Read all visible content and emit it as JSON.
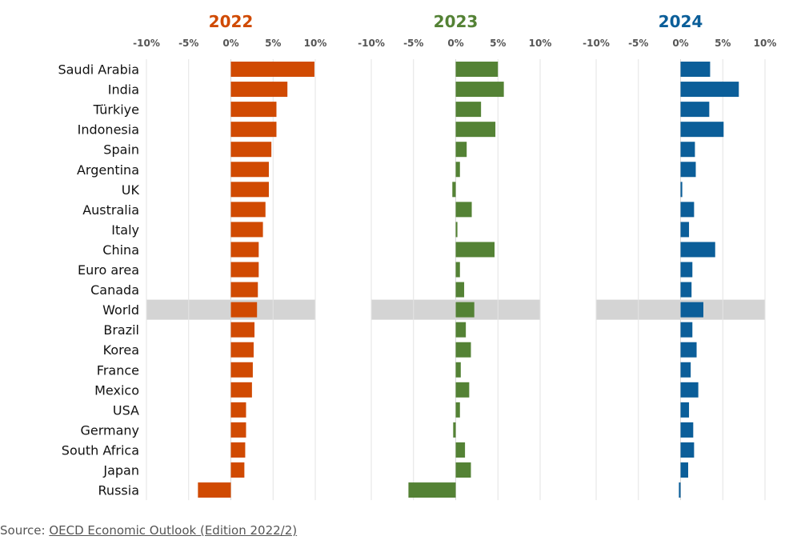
{
  "chart_data": {
    "type": "bar",
    "orientation": "horizontal",
    "categories": [
      "Saudi Arabia",
      "India",
      "Türkiye",
      "Indonesia",
      "Spain",
      "Argentina",
      "UK",
      "Australia",
      "Italy",
      "China",
      "Euro area",
      "Canada",
      "World",
      "Brazil",
      "Korea",
      "France",
      "Mexico",
      "USA",
      "Germany",
      "South Africa",
      "Japan",
      "Russia"
    ],
    "highlight_category": "World",
    "xlim": [
      -10,
      10
    ],
    "ticks": [
      -10,
      -5,
      0,
      5,
      10
    ],
    "tick_labels": [
      "-10%",
      "-5%",
      "0%",
      "5%",
      "10%"
    ],
    "series": [
      {
        "name": "2022",
        "color": "#D04A02",
        "values": [
          9.9,
          6.7,
          5.4,
          5.4,
          4.8,
          4.5,
          4.5,
          4.1,
          3.8,
          3.3,
          3.3,
          3.2,
          3.1,
          2.8,
          2.7,
          2.6,
          2.5,
          1.8,
          1.8,
          1.7,
          1.6,
          -3.9
        ]
      },
      {
        "name": "2023",
        "color": "#548235",
        "values": [
          5.0,
          5.7,
          3.0,
          4.7,
          1.3,
          0.5,
          -0.4,
          1.9,
          0.2,
          4.6,
          0.5,
          1.0,
          2.2,
          1.2,
          1.8,
          0.6,
          1.6,
          0.5,
          -0.3,
          1.1,
          1.8,
          -5.6
        ]
      },
      {
        "name": "2024",
        "color": "#0B5E99",
        "values": [
          3.5,
          6.9,
          3.4,
          5.1,
          1.7,
          1.8,
          0.2,
          1.6,
          1.0,
          4.1,
          1.4,
          1.3,
          2.7,
          1.4,
          1.9,
          1.2,
          2.1,
          1.0,
          1.5,
          1.6,
          0.9,
          -0.2
        ]
      }
    ]
  },
  "source": {
    "prefix": "Source: ",
    "link_text": "OECD Economic Outlook (Edition 2022/2)"
  }
}
